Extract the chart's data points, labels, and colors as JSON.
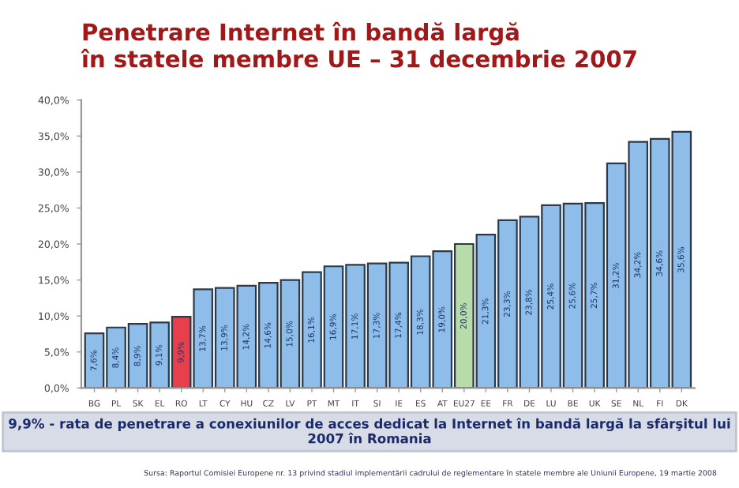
{
  "chart_data": {
    "type": "bar",
    "title": "Penetrare Internet în bandă largă\nîn statele membre UE – 31 decembrie 2007",
    "categories": [
      "BG",
      "PL",
      "SK",
      "EL",
      "RO",
      "LT",
      "CY",
      "HU",
      "CZ",
      "LV",
      "PT",
      "MT",
      "IT",
      "SI",
      "IE",
      "ES",
      "AT",
      "EU27",
      "EE",
      "FR",
      "DE",
      "LU",
      "BE",
      "UK",
      "SE",
      "NL",
      "FI",
      "DK"
    ],
    "values": [
      7.6,
      8.4,
      8.9,
      9.1,
      9.9,
      13.7,
      13.9,
      14.2,
      14.6,
      15.0,
      16.1,
      16.9,
      17.1,
      17.3,
      17.4,
      18.3,
      19.0,
      20.0,
      21.3,
      23.3,
      23.8,
      25.4,
      25.6,
      25.7,
      31.2,
      34.2,
      34.6,
      35.6
    ],
    "value_labels": [
      "7,6%",
      "8,4%",
      "8,9%",
      "9,1%",
      "9,9%",
      "13,7%",
      "13,9%",
      "14,2%",
      "14,6%",
      "15,0%",
      "16,1%",
      "16,9%",
      "17,1%",
      "17,3%",
      "17,4%",
      "18,3%",
      "19,0%",
      "20,0%",
      "21,3%",
      "23,3%",
      "23,8%",
      "25,4%",
      "25,6%",
      "25,7%",
      "31,2%",
      "34,2%",
      "34,6%",
      "35,6%"
    ],
    "colors": [
      "#8dbde8",
      "#8dbde8",
      "#8dbde8",
      "#8dbde8",
      "#e8404a",
      "#8dbde8",
      "#8dbde8",
      "#8dbde8",
      "#8dbde8",
      "#8dbde8",
      "#8dbde8",
      "#8dbde8",
      "#8dbde8",
      "#8dbde8",
      "#8dbde8",
      "#8dbde8",
      "#8dbde8",
      "#b8dca8",
      "#8dbde8",
      "#8dbde8",
      "#8dbde8",
      "#8dbde8",
      "#8dbde8",
      "#8dbde8",
      "#8dbde8",
      "#8dbde8",
      "#8dbde8",
      "#8dbde8"
    ],
    "ylim": [
      0,
      40
    ],
    "yticks": [
      {
        "value": 0,
        "label": "0,0%"
      },
      {
        "value": 5,
        "label": "5,0%"
      },
      {
        "value": 10,
        "label": "10,0%"
      },
      {
        "value": 15,
        "label": "15,0%"
      },
      {
        "value": 20,
        "label": "20,0%"
      },
      {
        "value": 25,
        "label": "25,0%"
      },
      {
        "value": 30,
        "label": "30,0%"
      },
      {
        "value": 35,
        "label": "35,0%"
      },
      {
        "value": 40,
        "label": "40,0%"
      }
    ],
    "grid": false,
    "legend": false,
    "annotations": [
      "9,9% - rata de penetrare a conexiunilor de acces dedicat la Internet în bandă largă la sfârşitul lui 2007 în Romania",
      "Sursa: Raportul Comisiei Europene nr. 13 privind stadiul implementării cadrului de reglementare în statele membre ale Uniunii Europene, 19 martie 2008"
    ]
  }
}
